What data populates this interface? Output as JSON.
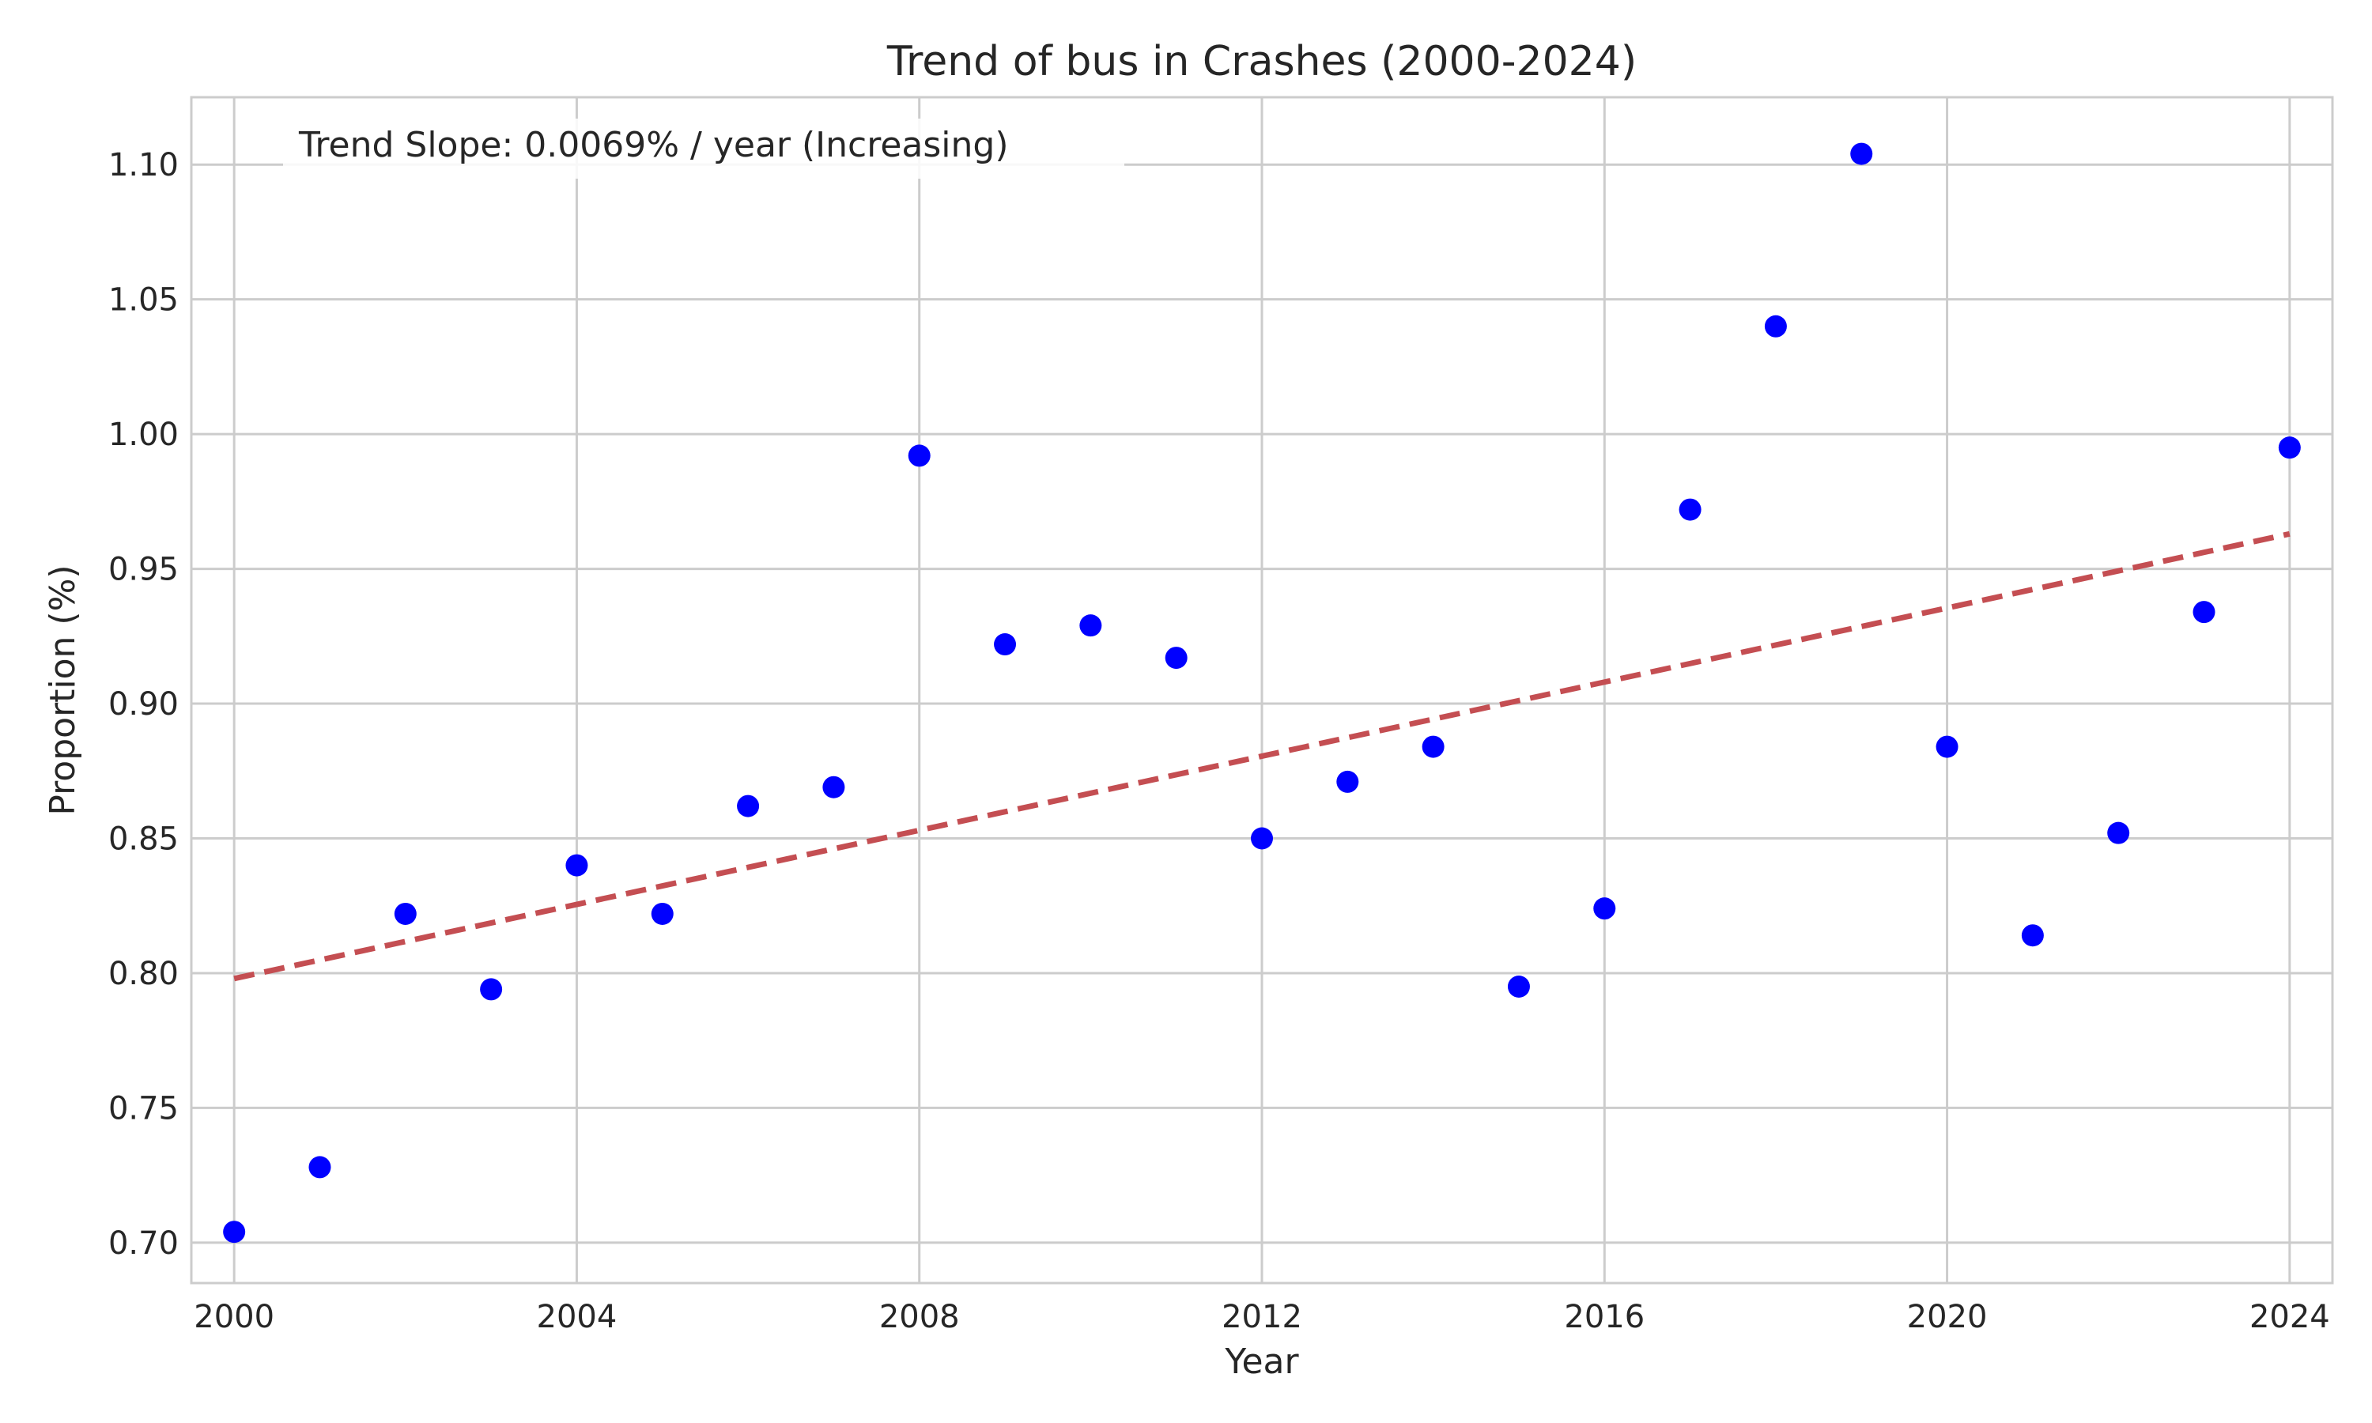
{
  "chart_data": {
    "type": "scatter",
    "title": "Trend of bus in Crashes (2000-2024)",
    "xlabel": "Year",
    "ylabel": "Proportion (%)",
    "xlim": [
      1999.5,
      2024.5
    ],
    "ylim": [
      0.685,
      1.125
    ],
    "xticks": [
      2000,
      2004,
      2008,
      2012,
      2016,
      2020,
      2024
    ],
    "xtick_labels": [
      "2000",
      "2004",
      "2008",
      "2012",
      "2016",
      "2020",
      "2024"
    ],
    "yticks": [
      0.7,
      0.75,
      0.8,
      0.85,
      0.9,
      0.95,
      1.0,
      1.05,
      1.1
    ],
    "ytick_labels": [
      "0.70",
      "0.75",
      "0.80",
      "0.85",
      "0.90",
      "0.95",
      "1.00",
      "1.05",
      "1.10"
    ],
    "grid": true,
    "annotation": "Trend Slope: 0.0069% / year (Increasing)",
    "x": [
      2000,
      2001,
      2002,
      2003,
      2004,
      2005,
      2006,
      2007,
      2008,
      2009,
      2010,
      2011,
      2012,
      2013,
      2014,
      2015,
      2016,
      2017,
      2018,
      2019,
      2020,
      2021,
      2022,
      2023,
      2024
    ],
    "y": [
      0.704,
      0.728,
      0.822,
      0.794,
      0.84,
      0.822,
      0.862,
      0.869,
      0.992,
      0.922,
      0.929,
      0.917,
      0.85,
      0.871,
      0.884,
      0.795,
      0.824,
      0.972,
      1.04,
      1.104,
      0.884,
      0.814,
      0.852,
      0.934,
      0.995
    ],
    "trend_line": {
      "x": [
        2000,
        2024
      ],
      "y": [
        0.798,
        0.963
      ]
    },
    "colors": {
      "points": "#0000ff",
      "trend": "#c44e52",
      "grid": "#cccccc",
      "text": "#262626"
    }
  }
}
